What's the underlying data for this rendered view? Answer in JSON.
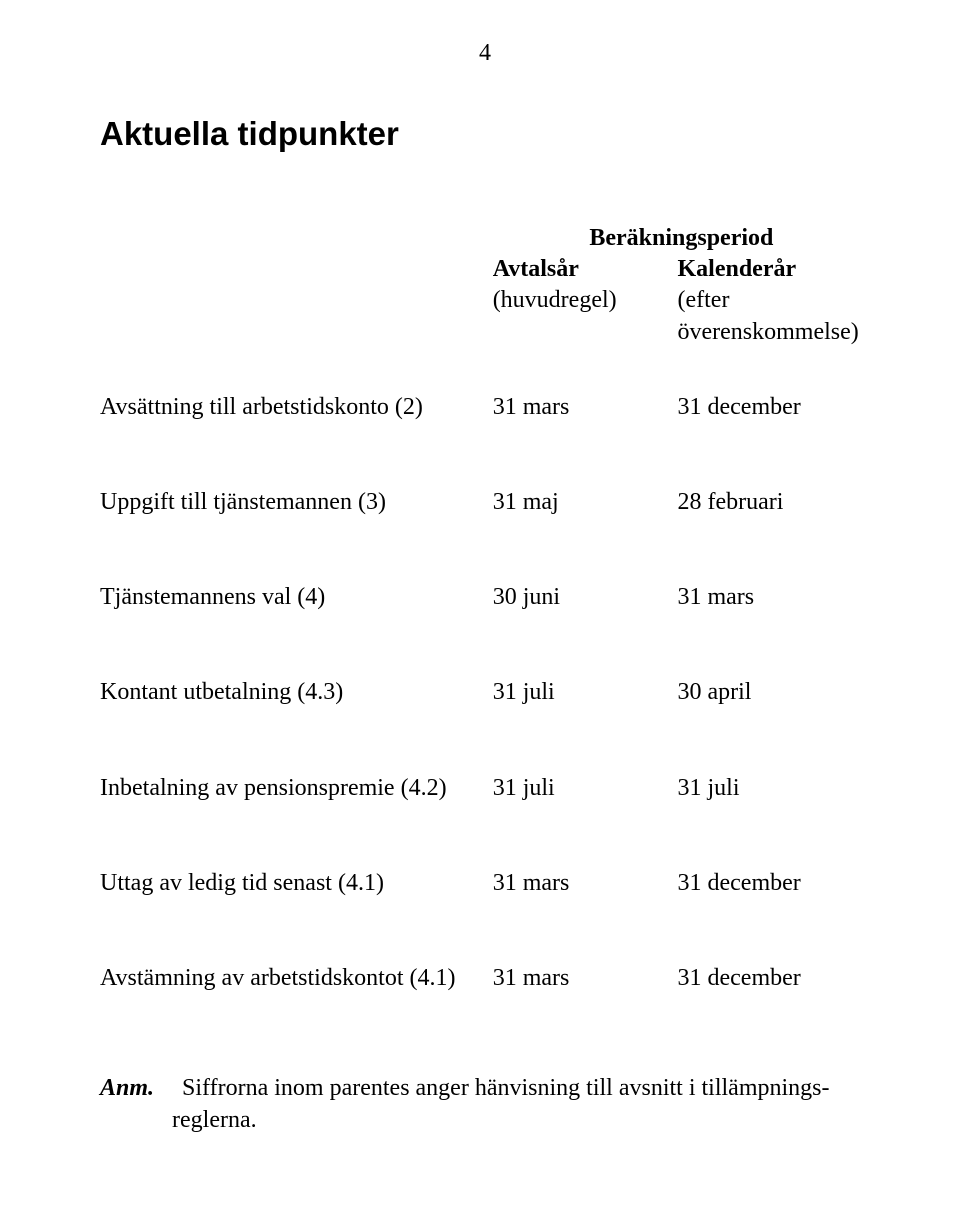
{
  "page_number": "4",
  "title": "Aktuella tidpunkter",
  "header": {
    "span_label": "Beräkningsperiod",
    "col2_line1": "Avtalsår",
    "col2_line2": "(huvudregel)",
    "col3_line1": "Kalenderår",
    "col3_line2": "(efter överenskommelse)"
  },
  "rows": [
    {
      "label": "Avsättning till arbetstidskonto (2)",
      "c2": "31 mars",
      "c3": "31 december"
    },
    {
      "label": "Uppgift till tjänstemannen (3)",
      "c2": "31 maj",
      "c3": "28 februari"
    },
    {
      "label": "Tjänstemannens val (4)",
      "c2": "30 juni",
      "c3": "31 mars"
    },
    {
      "label": "Kontant utbetalning (4.3)",
      "c2": "31 juli",
      "c3": "30 april"
    },
    {
      "label": "Inbetalning av pensionspremie (4.2)",
      "c2": "31 juli",
      "c3": "31 juli"
    },
    {
      "label": "Uttag av ledig tid senast (4.1)",
      "c2": "31 mars",
      "c3": "31 december"
    },
    {
      "label": "Avstämning av arbetstidskontot (4.1)",
      "c2": "31 mars",
      "c3": "31 december"
    }
  ],
  "footnote": {
    "label": "Anm.",
    "text": "Siffrorna inom parentes anger hänvisning till avsnitt i tillämpnings-reglerna."
  }
}
